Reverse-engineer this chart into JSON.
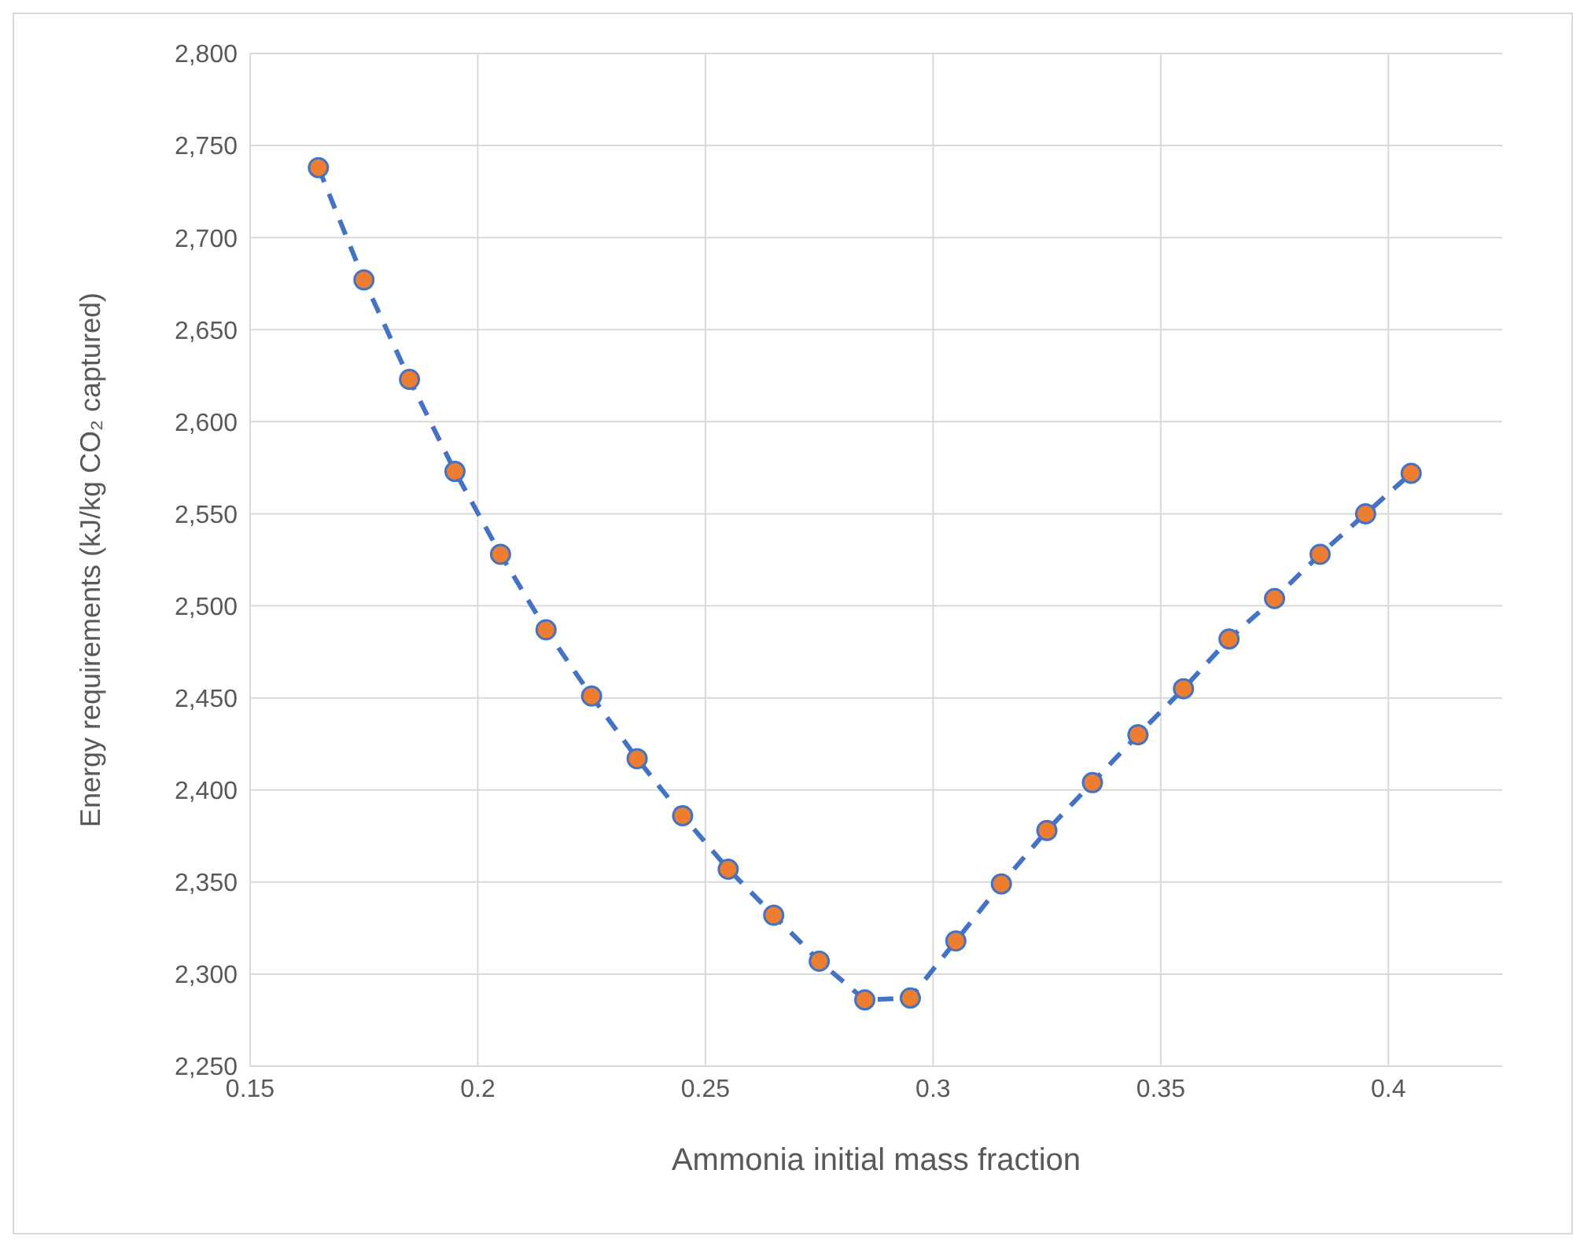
{
  "chart_data": {
    "type": "line",
    "xlabel": "Ammonia initial mass fraction",
    "ylabel": "Energy requirements (kJ/kg CO₂ captured)",
    "x": [
      0.165,
      0.175,
      0.185,
      0.195,
      0.205,
      0.215,
      0.225,
      0.235,
      0.245,
      0.255,
      0.265,
      0.275,
      0.285,
      0.295,
      0.305,
      0.315,
      0.325,
      0.335,
      0.345,
      0.355,
      0.365,
      0.375,
      0.385,
      0.395,
      0.405
    ],
    "series": [
      {
        "color": "#4472c4",
        "colors": [
          "#ed7d31",
          "#ed7d31",
          "#ed7d31",
          "#ed7d31",
          "#ed7d31",
          "#ed7d31",
          "#ed7d31",
          "#ed7d31",
          "#ed7d31",
          "#ed7d31",
          "#ed7d31",
          "#ed7d31",
          "#ed7d31",
          "#ed7d31",
          "#ed7d31",
          "#ed7d31",
          "#ed7d31",
          "#ed7d31",
          "#ed7d31",
          "#ed7d31",
          "#ed7d31",
          "#ed7d31",
          "#ed7d31",
          "#ed7d31",
          "#ed7d31"
        ],
        "values": [
          2738,
          2677,
          2623,
          2573,
          2528,
          2487,
          2451,
          2417,
          2386,
          2357,
          2332,
          2307,
          2286,
          2287,
          2318,
          2349,
          2378,
          2404,
          2430,
          2455,
          2482,
          2504,
          2528,
          2550,
          2572
        ]
      }
    ],
    "xlim": [
      0.15,
      0.425
    ],
    "xticks": [
      0.15,
      0.2,
      0.25,
      0.3,
      0.35,
      0.4
    ],
    "ylim": [
      2250,
      2800
    ],
    "yticks": [
      {
        "value": 2250,
        "label": "2,250"
      },
      {
        "value": 2300,
        "label": "2,300"
      },
      {
        "value": 2350,
        "label": "2,350"
      },
      {
        "value": 2400,
        "label": "2,400"
      },
      {
        "value": 2450,
        "label": "2,450"
      },
      {
        "value": 2500,
        "label": "2,500"
      },
      {
        "value": 2550,
        "label": "2,550"
      },
      {
        "value": 2600,
        "label": "2,600"
      },
      {
        "value": 2650,
        "label": "2,650"
      },
      {
        "value": 2700,
        "label": "2,700"
      },
      {
        "value": 2750,
        "label": "2,750"
      },
      {
        "value": 2800,
        "label": "2,800"
      }
    ],
    "grid": true,
    "marker": "circle",
    "line_style": "dashed"
  }
}
